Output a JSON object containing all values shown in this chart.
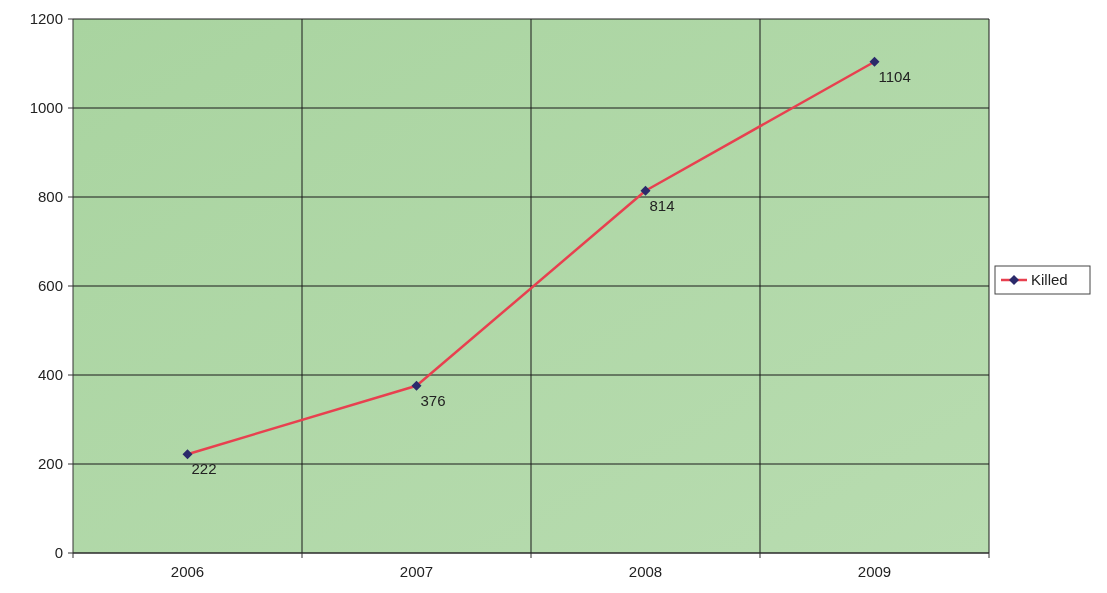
{
  "chart_data": {
    "type": "line",
    "categories": [
      "2006",
      "2007",
      "2008",
      "2009"
    ],
    "series": [
      {
        "name": "Killed",
        "color": "#e8404f",
        "values": [
          222,
          376,
          814,
          1104
        ]
      }
    ],
    "ylim": [
      0,
      1200
    ],
    "yticks": [
      0,
      200,
      400,
      600,
      800,
      1000,
      1200
    ],
    "grid": true,
    "legend": "right",
    "marker": "diamond",
    "data_labels": true
  }
}
